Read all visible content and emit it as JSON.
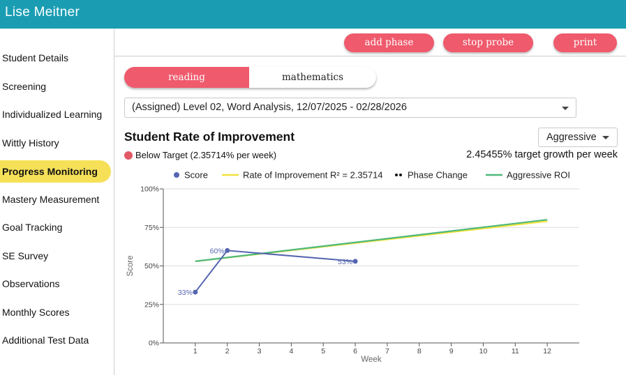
{
  "app": {
    "user_name": "Lise Meitner",
    "header_color": "#1a9db3",
    "accent": "#ef5a6c",
    "active_highlight": "#f6e058"
  },
  "sidebar": {
    "items": [
      {
        "label": "Student Details"
      },
      {
        "label": "Screening"
      },
      {
        "label": "Individualized Learning"
      },
      {
        "label": "Wittly History"
      },
      {
        "label": "Progress Monitoring",
        "active": true
      },
      {
        "label": "Mastery Measurement"
      },
      {
        "label": "Goal Tracking"
      },
      {
        "label": "SE Survey"
      },
      {
        "label": "Observations"
      },
      {
        "label": "Monthly Scores"
      },
      {
        "label": "Additional Test Data"
      }
    ]
  },
  "actions": {
    "add_phase": "add phase",
    "stop_probe": "stop probe",
    "print": "print"
  },
  "subject_toggle": {
    "options": [
      "reading",
      "mathematics"
    ],
    "selected": "reading"
  },
  "assessment_select": {
    "value": "(Assigned) Level 02, Word Analysis, 12/07/2025 - 02/28/2026",
    "icon": "chevron-down-icon"
  },
  "roi": {
    "heading": "Student Rate of Improvement",
    "goal_select": "Aggressive",
    "status_text": "Below Target (2.35714% per week)",
    "status_color": "#e15a66",
    "target_text": "2.45455% target growth per week"
  },
  "chart_data": {
    "type": "line",
    "legend": [
      {
        "label": "Score",
        "color": "#5565b0",
        "marker": "dot"
      },
      {
        "label": "Rate of Improvement R² = 2.35714",
        "color": "#f1e33c",
        "marker": "line"
      },
      {
        "label": "Phase Change",
        "color": "#111111",
        "marker": "dots"
      },
      {
        "label": "Aggressive ROI",
        "color": "#4fb87a",
        "marker": "line"
      }
    ],
    "legend_position": "top",
    "xlabel": "Week",
    "ylabel": "Score",
    "x_ticks": [
      1,
      2,
      3,
      4,
      5,
      6,
      7,
      8,
      9,
      10,
      11,
      12
    ],
    "y_ticks": [
      "0%",
      "25%",
      "50%",
      "75%",
      "100%"
    ],
    "xlim": [
      0,
      13
    ],
    "ylim": [
      0,
      100
    ],
    "grid": "horizontal",
    "series": [
      {
        "name": "Score",
        "color": "#5565b0",
        "points": [
          [
            1,
            33
          ],
          [
            2,
            60
          ],
          [
            6,
            53
          ]
        ],
        "labels": [
          "33%",
          "60%",
          "53%"
        ]
      },
      {
        "name": "Rate of Improvement",
        "color": "#f1e33c",
        "points": [
          [
            1,
            53
          ],
          [
            12,
            79
          ]
        ]
      },
      {
        "name": "Aggressive ROI",
        "color": "#4fb87a",
        "points": [
          [
            1,
            53
          ],
          [
            12,
            80
          ]
        ]
      }
    ]
  }
}
